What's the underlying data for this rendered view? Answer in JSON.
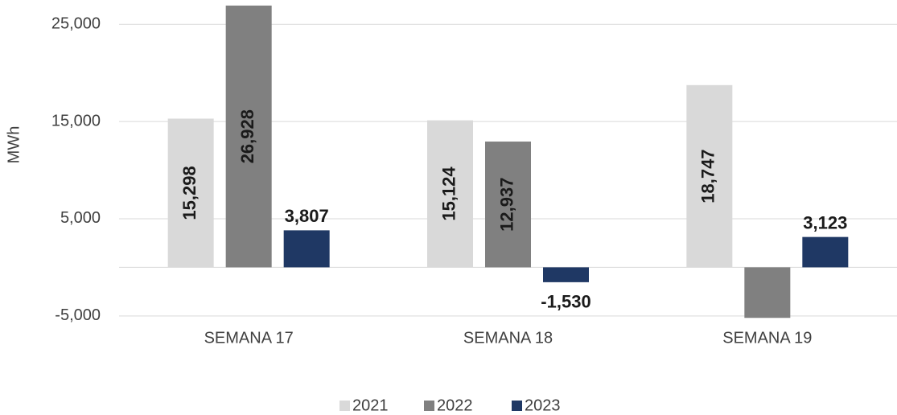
{
  "chart_data": {
    "type": "bar",
    "y_label": "MWh",
    "categories": [
      "SEMANA 17",
      "SEMANA 18",
      "SEMANA 19"
    ],
    "series": [
      {
        "name": "2021",
        "color": "#d9d9d9",
        "values": [
          15298,
          15124,
          18747
        ],
        "value_labels": [
          "15,298",
          "15,124",
          "18,747"
        ]
      },
      {
        "name": "2022",
        "color": "#808080",
        "values": [
          26928,
          12937,
          -5200
        ],
        "value_labels": [
          "26,928",
          "12,937",
          null
        ]
      },
      {
        "name": "2023",
        "color": "#1f3864",
        "values": [
          3807,
          -1530,
          3123
        ],
        "value_labels": [
          "3,807",
          "-1,530",
          "3,123"
        ]
      }
    ],
    "ylim": [
      -7000,
      27500
    ],
    "yticks": [
      {
        "value": -5000,
        "label": "-5,000"
      },
      {
        "value": 5000,
        "label": "5,000"
      },
      {
        "value": 15000,
        "label": "15,000"
      },
      {
        "value": 25000,
        "label": "25,000"
      }
    ],
    "grid": true
  }
}
